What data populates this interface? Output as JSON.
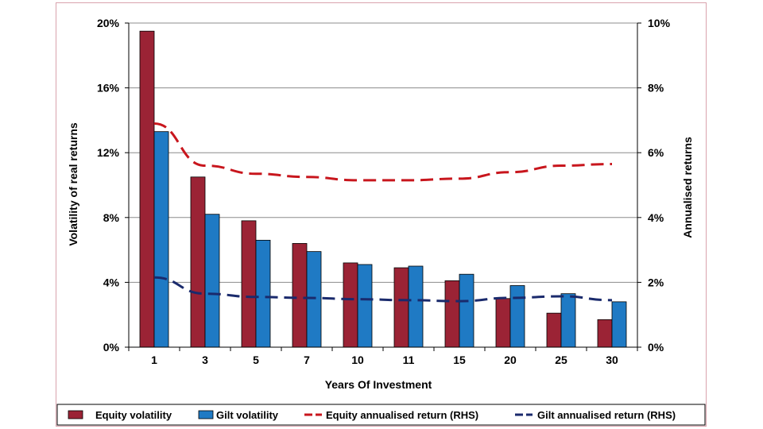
{
  "chart_data": {
    "type": "bar",
    "categories": [
      "1",
      "3",
      "5",
      "7",
      "10",
      "11",
      "15",
      "20",
      "25",
      "30"
    ],
    "xlabel": "Years Of Investment",
    "ylabel_left": "Volatility of real returns",
    "ylabel_right": "Annualised returns",
    "ylim_left": [
      0,
      20
    ],
    "ylim_right": [
      0,
      10
    ],
    "yticks_left": [
      "0%",
      "4%",
      "8%",
      "12%",
      "16%",
      "20%"
    ],
    "yticks_right": [
      "0%",
      "2%",
      "4%",
      "6%",
      "8%",
      "10%"
    ],
    "grid": true,
    "legend_position": "bottom",
    "series": [
      {
        "name": "Equity volatility",
        "kind": "bar",
        "axis": "left",
        "color": "#9b2335",
        "values": [
          19.5,
          10.5,
          7.8,
          6.4,
          5.2,
          4.9,
          4.1,
          3.0,
          2.1,
          1.7
        ]
      },
      {
        "name": "Gilt volatility",
        "kind": "bar",
        "axis": "left",
        "color": "#1f7ac4",
        "values": [
          13.3,
          8.2,
          6.6,
          5.9,
          5.1,
          5.0,
          4.5,
          3.8,
          3.3,
          2.8
        ]
      },
      {
        "name": "Equity annualised return (RHS)",
        "kind": "line",
        "axis": "right",
        "color": "#c8161d",
        "values": [
          6.9,
          5.6,
          5.35,
          5.25,
          5.15,
          5.15,
          5.2,
          5.4,
          5.6,
          5.65
        ]
      },
      {
        "name": "Gilt annualised return (RHS)",
        "kind": "line",
        "axis": "right",
        "color": "#1a2a6c",
        "values": [
          2.15,
          1.65,
          1.55,
          1.52,
          1.48,
          1.45,
          1.42,
          1.52,
          1.57,
          1.45
        ]
      }
    ]
  }
}
